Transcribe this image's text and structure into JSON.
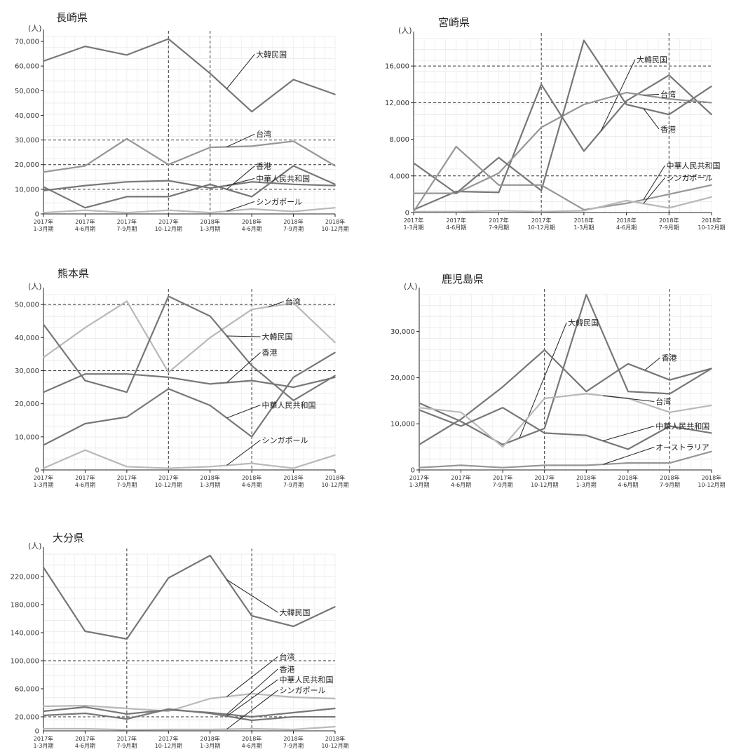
{
  "colors": {
    "dark": "#777777",
    "mid": "#969696",
    "light": "#b9b9b9",
    "axis": "#222222"
  },
  "chart_data": [
    {
      "type": "line",
      "title": "長崎県",
      "unit": "(人)",
      "x": [
        "2017年 1-3月期",
        "2017年 4-6月期",
        "2017年 7-9月期",
        "2017年 10-12月期",
        "2018年 1-3月期",
        "2018年 4-6月期",
        "2018年 7-9月期",
        "2018年 10-12月期"
      ],
      "ylim": [
        0,
        72000
      ],
      "yticks": [
        0,
        10000,
        20000,
        30000,
        40000,
        50000,
        60000,
        70000
      ],
      "ytick_labels": [
        "0",
        "10,000",
        "20,000",
        "30,000",
        "40,000",
        "50,000",
        "60,000",
        "70,000"
      ],
      "dashed_x": [
        3,
        4
      ],
      "dashed_y": [
        10000,
        20000,
        30000
      ],
      "series": [
        {
          "name": "大韓民国",
          "values": [
            62000,
            68000,
            64500,
            71000,
            57000,
            41500,
            54500,
            48500
          ],
          "color": "dark",
          "label_at": [
            0.7,
            0.1
          ]
        },
        {
          "name": "台湾",
          "values": [
            17000,
            19500,
            30500,
            20000,
            27000,
            27500,
            29500,
            19500
          ],
          "color": "mid",
          "label_at": [
            0.7,
            0.55
          ]
        },
        {
          "name": "香港",
          "values": [
            11000,
            2500,
            7000,
            7000,
            12000,
            7000,
            19500,
            12000
          ],
          "color": "dark",
          "label_at": [
            0.7,
            0.73
          ]
        },
        {
          "name": "中華人民共和国",
          "values": [
            9500,
            11500,
            13000,
            13500,
            10500,
            13000,
            12000,
            11500
          ],
          "color": "dark",
          "label_at": [
            0.7,
            0.8
          ]
        },
        {
          "name": "シンガポール",
          "values": [
            500,
            1500,
            500,
            1500,
            500,
            2000,
            1000,
            2500
          ],
          "color": "light",
          "label_at": [
            0.7,
            0.93
          ]
        }
      ]
    },
    {
      "type": "line",
      "title": "宮崎県",
      "unit": "(人)",
      "x": [
        "2017年 1-3月期",
        "2017年 4-6月期",
        "2017年 7-9月期",
        "2017年 10-12月期",
        "2018年 1-3月期",
        "2018年 4-6月期",
        "2018年 7-9月期",
        "2018年 10-12月期"
      ],
      "ylim": [
        0,
        19000
      ],
      "yticks": [
        0,
        4000,
        8000,
        12000,
        16000
      ],
      "ytick_labels": [
        "0",
        "4,000",
        "8,000",
        "12,000",
        "16,000"
      ],
      "dashed_x": [
        3,
        6
      ],
      "dashed_y": [
        4000,
        12000,
        16000
      ],
      "series": [
        {
          "name": "大韓民国",
          "values": [
            300,
            2300,
            2200,
            14000,
            6700,
            12200,
            15000,
            10700
          ],
          "color": "dark",
          "label_at": [
            0.72,
            0.12
          ]
        },
        {
          "name": "台湾",
          "values": [
            2100,
            2100,
            4300,
            9300,
            11800,
            13100,
            12400,
            12000
          ],
          "color": "mid",
          "label_at": [
            0.8,
            0.32
          ]
        },
        {
          "name": "香港",
          "values": [
            5400,
            2100,
            6000,
            2400,
            18800,
            11800,
            10700,
            13800
          ],
          "color": "dark",
          "label_at": [
            0.8,
            0.52
          ]
        },
        {
          "name": "中華人民共和国",
          "values": [
            100,
            7200,
            3000,
            3000,
            300,
            1000,
            2000,
            3000
          ],
          "color": "mid",
          "label_at": [
            0.82,
            0.73
          ]
        },
        {
          "name": "シンガポール",
          "values": [
            100,
            100,
            200,
            100,
            200,
            1300,
            500,
            1700
          ],
          "color": "light",
          "label_at": [
            0.82,
            0.8
          ]
        }
      ]
    },
    {
      "type": "line",
      "title": "熊本県",
      "unit": "(人)",
      "x": [
        "2017年 1-3月期",
        "2017年 4-6月期",
        "2017年 7-9月期",
        "2017年 10-12月期",
        "2018年 1-3月期",
        "2018年 4-6月期",
        "2018年 7-9月期",
        "2018年 10-12月期"
      ],
      "ylim": [
        0,
        53000
      ],
      "yticks": [
        0,
        10000,
        20000,
        30000,
        40000,
        50000
      ],
      "ytick_labels": [
        "0",
        "10,000",
        "20,000",
        "30,000",
        "40,000",
        "50,000"
      ],
      "dashed_x": [
        3,
        5
      ],
      "dashed_y": [
        30000,
        50000
      ],
      "series": [
        {
          "name": "台湾",
          "values": [
            34000,
            43000,
            51000,
            29500,
            40000,
            48500,
            50500,
            38500
          ],
          "color": "light",
          "label_at": [
            0.8,
            0.04
          ]
        },
        {
          "name": "大韓民国",
          "values": [
            44000,
            27000,
            23500,
            52500,
            46500,
            31500,
            21000,
            28500
          ],
          "color": "dark",
          "label_at": [
            0.72,
            0.24
          ]
        },
        {
          "name": "香港",
          "values": [
            23500,
            29000,
            29000,
            28000,
            26000,
            27000,
            25000,
            28000
          ],
          "color": "dark",
          "label_at": [
            0.72,
            0.33
          ]
        },
        {
          "name": "中華人民共和国",
          "values": [
            7500,
            14000,
            16000,
            24500,
            19500,
            10000,
            28000,
            35500
          ],
          "color": "dark",
          "label_at": [
            0.72,
            0.63
          ]
        },
        {
          "name": "シンガポール",
          "values": [
            500,
            6000,
            1000,
            500,
            1000,
            2000,
            500,
            4500
          ],
          "color": "light",
          "label_at": [
            0.72,
            0.83
          ]
        }
      ]
    },
    {
      "type": "line",
      "title": "鹿児島県",
      "unit": "(人)",
      "x": [
        "2017年 1-3月期",
        "2017年 4-6月期",
        "2017年 7-9月期",
        "2017年 10-12月期",
        "2018年 1-3月期",
        "2018年 4-6月期",
        "2018年 7-9月期",
        "2018年 10-12月期"
      ],
      "ylim": [
        0,
        38000
      ],
      "yticks": [
        0,
        10000,
        20000,
        30000
      ],
      "ytick_labels": [
        "0",
        "10,000",
        "20,000",
        "30,000"
      ],
      "dashed_x": [
        3,
        6
      ],
      "dashed_y": [],
      "series": [
        {
          "name": "大韓民国",
          "values": [
            14500,
            10500,
            5500,
            9000,
            38000,
            17000,
            16500,
            22000
          ],
          "color": "dark",
          "label_at": [
            0.48,
            0.16
          ]
        },
        {
          "name": "香港",
          "values": [
            5500,
            11000,
            18000,
            26000,
            17000,
            23000,
            19500,
            22000
          ],
          "color": "dark",
          "label_at": [
            0.8,
            0.36
          ]
        },
        {
          "name": "台湾",
          "values": [
            13500,
            12500,
            5000,
            15500,
            16500,
            15500,
            12500,
            14000
          ],
          "color": "light",
          "label_at": [
            0.78,
            0.61
          ]
        },
        {
          "name": "中華人民共和国",
          "values": [
            13000,
            9500,
            13500,
            8000,
            7500,
            4500,
            9500,
            8000
          ],
          "color": "dark",
          "label_at": [
            0.78,
            0.75
          ]
        },
        {
          "name": "オーストラリア",
          "values": [
            500,
            1000,
            500,
            1000,
            1000,
            1500,
            1500,
            4000
          ],
          "color": "mid",
          "label_at": [
            0.78,
            0.87
          ]
        }
      ]
    },
    {
      "type": "line",
      "title": "大分県",
      "unit": "(人)",
      "x": [
        "2017年 1-3月期",
        "2017年 4-6月期",
        "2017年 7-9月期",
        "2017年 10-12月期",
        "2018年 1-3月期",
        "2018年 4-6月期",
        "2018年 7-9月期",
        "2018年 10-12月期"
      ],
      "ylim": [
        0,
        252000
      ],
      "yticks": [
        20000,
        60000,
        100000,
        140000,
        180000,
        220000
      ],
      "ytick_labels": [
        "20,000",
        "60,000",
        "100,000",
        "140,000",
        "180,000",
        "220,000"
      ],
      "zero_label": "0",
      "dashed_x": [
        2,
        5
      ],
      "dashed_y": [
        20000,
        100000
      ],
      "series": [
        {
          "name": "大韓民国",
          "values": [
            233000,
            142000,
            131000,
            218000,
            250000,
            164000,
            149000,
            177000
          ],
          "color": "dark",
          "label_at": [
            0.78,
            0.33
          ]
        },
        {
          "name": "台湾",
          "values": [
            35000,
            36000,
            32000,
            28000,
            46000,
            53000,
            48000,
            46000
          ],
          "color": "light",
          "label_at": [
            0.78,
            0.58
          ]
        },
        {
          "name": "香港",
          "values": [
            28000,
            34000,
            24000,
            30000,
            26000,
            20000,
            26000,
            32000
          ],
          "color": "dark",
          "label_at": [
            0.78,
            0.65
          ]
        },
        {
          "name": "中華人民共和国",
          "values": [
            22000,
            25000,
            17000,
            31000,
            25000,
            15000,
            20000,
            20000
          ],
          "color": "dark",
          "label_at": [
            0.78,
            0.71
          ]
        },
        {
          "name": "シンガポール",
          "values": [
            3000,
            3000,
            1500,
            2000,
            2000,
            3000,
            2000,
            6000
          ],
          "color": "light",
          "label_at": [
            0.78,
            0.77
          ]
        }
      ]
    }
  ]
}
